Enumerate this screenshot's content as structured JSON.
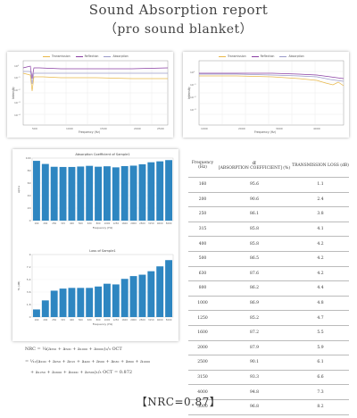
{
  "header": {
    "title": "Sound Absorption report",
    "subtitle": "（pro sound blanket）"
  },
  "panel_top_left": {
    "legend": [
      "Transmission",
      "Reflection",
      "Absorption"
    ],
    "xlabel": "Frequency (Hz)",
    "ylabel": "Intensity",
    "colors": {
      "transmission": "#e8b84a",
      "reflection": "#8a3fa3",
      "absorption": "#9b9bc9"
    }
  },
  "panel_top_right": {
    "legend": [
      "Transmission",
      "Reflection",
      "Absorption"
    ],
    "xlabel": "Frequency (Hz)",
    "ylabel": "Intensity"
  },
  "chart_data": [
    {
      "type": "bar",
      "title": "Absorption Coefficient of Sample1",
      "xlabel": "Frequency (Hz)",
      "ylabel": "alpha",
      "categories": [
        "160",
        "200",
        "250",
        "315",
        "400",
        "500",
        "630",
        "800",
        "1000",
        "1250",
        "1600",
        "2000",
        "2500",
        "3150",
        "4000",
        "5000"
      ],
      "values": [
        95.6,
        90.6,
        86.1,
        85.8,
        85.8,
        86.5,
        87.6,
        86.2,
        86.9,
        85.2,
        87.2,
        87.9,
        90.1,
        93.3,
        94.8,
        96.8
      ],
      "ylim": [
        0,
        100
      ],
      "color": "#2e86c1"
    },
    {
      "type": "bar",
      "title": "Loss of Sample1",
      "xlabel": "Frequency (Hz)",
      "ylabel": "TL (dB)",
      "categories": [
        "160",
        "200",
        "250",
        "315",
        "400",
        "500",
        "630",
        "800",
        "1000",
        "1250",
        "1600",
        "2000",
        "2500",
        "3150",
        "4000",
        "5000"
      ],
      "values": [
        1.1,
        2.4,
        3.8,
        4.1,
        4.2,
        4.2,
        4.2,
        4.4,
        4.8,
        4.7,
        5.5,
        5.9,
        6.1,
        6.6,
        7.3,
        8.2
      ],
      "ylim": [
        0,
        9
      ],
      "color": "#2e86c1"
    }
  ],
  "table": {
    "headers": {
      "frequency": "Frequency (Hz)",
      "alpha_symbol": "α",
      "alpha": "[ABSORPTION COEFFICIENT] (%)",
      "tl": "TRANSMISSION LOSS (dB)"
    },
    "rows": [
      [
        "160",
        "95.6",
        "1.1"
      ],
      [
        "200",
        "90.6",
        "2.4"
      ],
      [
        "250",
        "86.1",
        "3.8"
      ],
      [
        "315",
        "85.8",
        "4.1"
      ],
      [
        "400",
        "85.8",
        "4.2"
      ],
      [
        "500",
        "86.5",
        "4.2"
      ],
      [
        "630",
        "87.6",
        "4.2"
      ],
      [
        "800",
        "86.2",
        "4.4"
      ],
      [
        "1000",
        "86.9",
        "4.8"
      ],
      [
        "1250",
        "85.2",
        "4.7"
      ],
      [
        "1600",
        "87.2",
        "5.5"
      ],
      [
        "2000",
        "87.9",
        "5.9"
      ],
      [
        "2500",
        "90.1",
        "6.1"
      ],
      [
        "3150",
        "93.3",
        "6.6"
      ],
      [
        "4000",
        "94.8",
        "7.3"
      ],
      [
        "5000",
        "96.8",
        "8.2"
      ]
    ]
  },
  "formula": {
    "line1": "NRC = ¼(a₂₅₀ + a₅₀₀ + a₁₀₀₀ + a₂₀₀₀)₁/₃ OCT",
    "line2": "= ¹⁄₁₂(a₂₀₀ + a₂₅₀ + a₃₁₅ + a₄₀₀ + a₅₀₀ + a₆₃₀ + a₈₀₀ + a₁₀₀₀",
    "line3": "+ a₁₂₅₀ + a₁₆₀₀ + a₂₀₀₀ + a₂₅₀₀)₁/₃ OCT = 0.872"
  },
  "nrc": "【NRC=0.87】"
}
